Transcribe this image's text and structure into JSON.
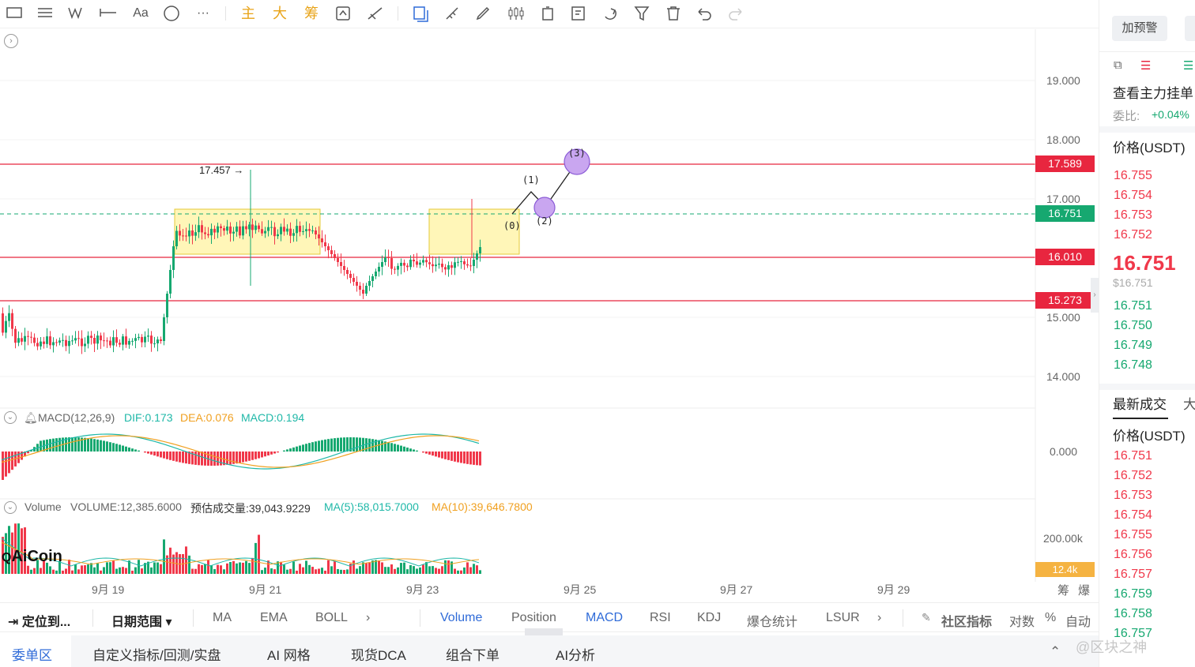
{
  "toolbar": {
    "text_tool": "Aa",
    "more": "···",
    "main": "主",
    "big": "大",
    "chips": "筹"
  },
  "chart": {
    "prices": [
      "19.000",
      "18.000",
      "17.000",
      "15.000",
      "14.000"
    ],
    "markers": {
      "resistance_high": "17.589",
      "last": "16.751",
      "support_mid": "16.010",
      "support_low": "15.273"
    },
    "high_label": "17.457 →",
    "wave_labels": [
      "(0)",
      "(1)",
      "(2)",
      "(3)"
    ],
    "macd": {
      "name": "MACD(12,26,9)",
      "dif": "DIF:0.173",
      "dea": "DEA:0.076",
      "macd": "MACD:0.194",
      "axis": "0.000"
    },
    "volume": {
      "name": "Volume",
      "vol": "VOLUME:12,385.6000",
      "est": "预估成交量:39,043.9229",
      "ma5": "MA(5):58,015.7000",
      "ma10": "MA(10):39,646.7800",
      "axis": "200.00k",
      "tag": "12.4k"
    },
    "x_labels": [
      "9月 19",
      "9月 21",
      "9月 23",
      "9月 25",
      "9月 27",
      "9月 29"
    ],
    "logo": "AiCoin",
    "corner_labels": [
      "筹",
      "爆"
    ],
    "colors": {
      "up": "#16a870",
      "down": "#f0384a",
      "zone": "#fff3a0",
      "wave": "#c9a6f0"
    }
  },
  "bottom_bar": {
    "locate": "定位到...",
    "range": "日期范围 ▾",
    "main_inds": [
      "MA",
      "EMA",
      "BOLL"
    ],
    "sub_inds": [
      "Volume",
      "Position",
      "MACD",
      "RSI",
      "KDJ",
      "爆仓统计",
      "LSUR"
    ],
    "community": "社区指标",
    "log": "对数",
    "pct": "%",
    "auto": "自动"
  },
  "bottom_tabs": [
    "委单区",
    "自定义指标/回测/实盘",
    "AI 网格",
    "现货DCA",
    "组合下单",
    "AI分析"
  ],
  "right_panel": {
    "alert": "加预警",
    "main_orders": "查看主力挂单",
    "ratio_label": "委比:",
    "ratio": "+0.04%",
    "price_header": "价格(USDT)",
    "asks": [
      "16.755",
      "16.754",
      "16.753",
      "16.752"
    ],
    "last_price": "16.751",
    "last_usd": "$16.751",
    "bids": [
      "16.751",
      "16.750",
      "16.749",
      "16.748"
    ],
    "latest_trades": "最新成交",
    "big": "大",
    "trade_header": "价格(USDT)",
    "trades": [
      {
        "p": "16.751",
        "side": "down"
      },
      {
        "p": "16.752",
        "side": "down"
      },
      {
        "p": "16.753",
        "side": "down"
      },
      {
        "p": "16.754",
        "side": "down"
      },
      {
        "p": "16.755",
        "side": "down"
      },
      {
        "p": "16.756",
        "side": "down"
      },
      {
        "p": "16.757",
        "side": "down"
      },
      {
        "p": "16.759",
        "side": "up"
      },
      {
        "p": "16.758",
        "side": "up"
      },
      {
        "p": "16.757",
        "side": "up"
      }
    ],
    "watermark": "@区块之神"
  }
}
